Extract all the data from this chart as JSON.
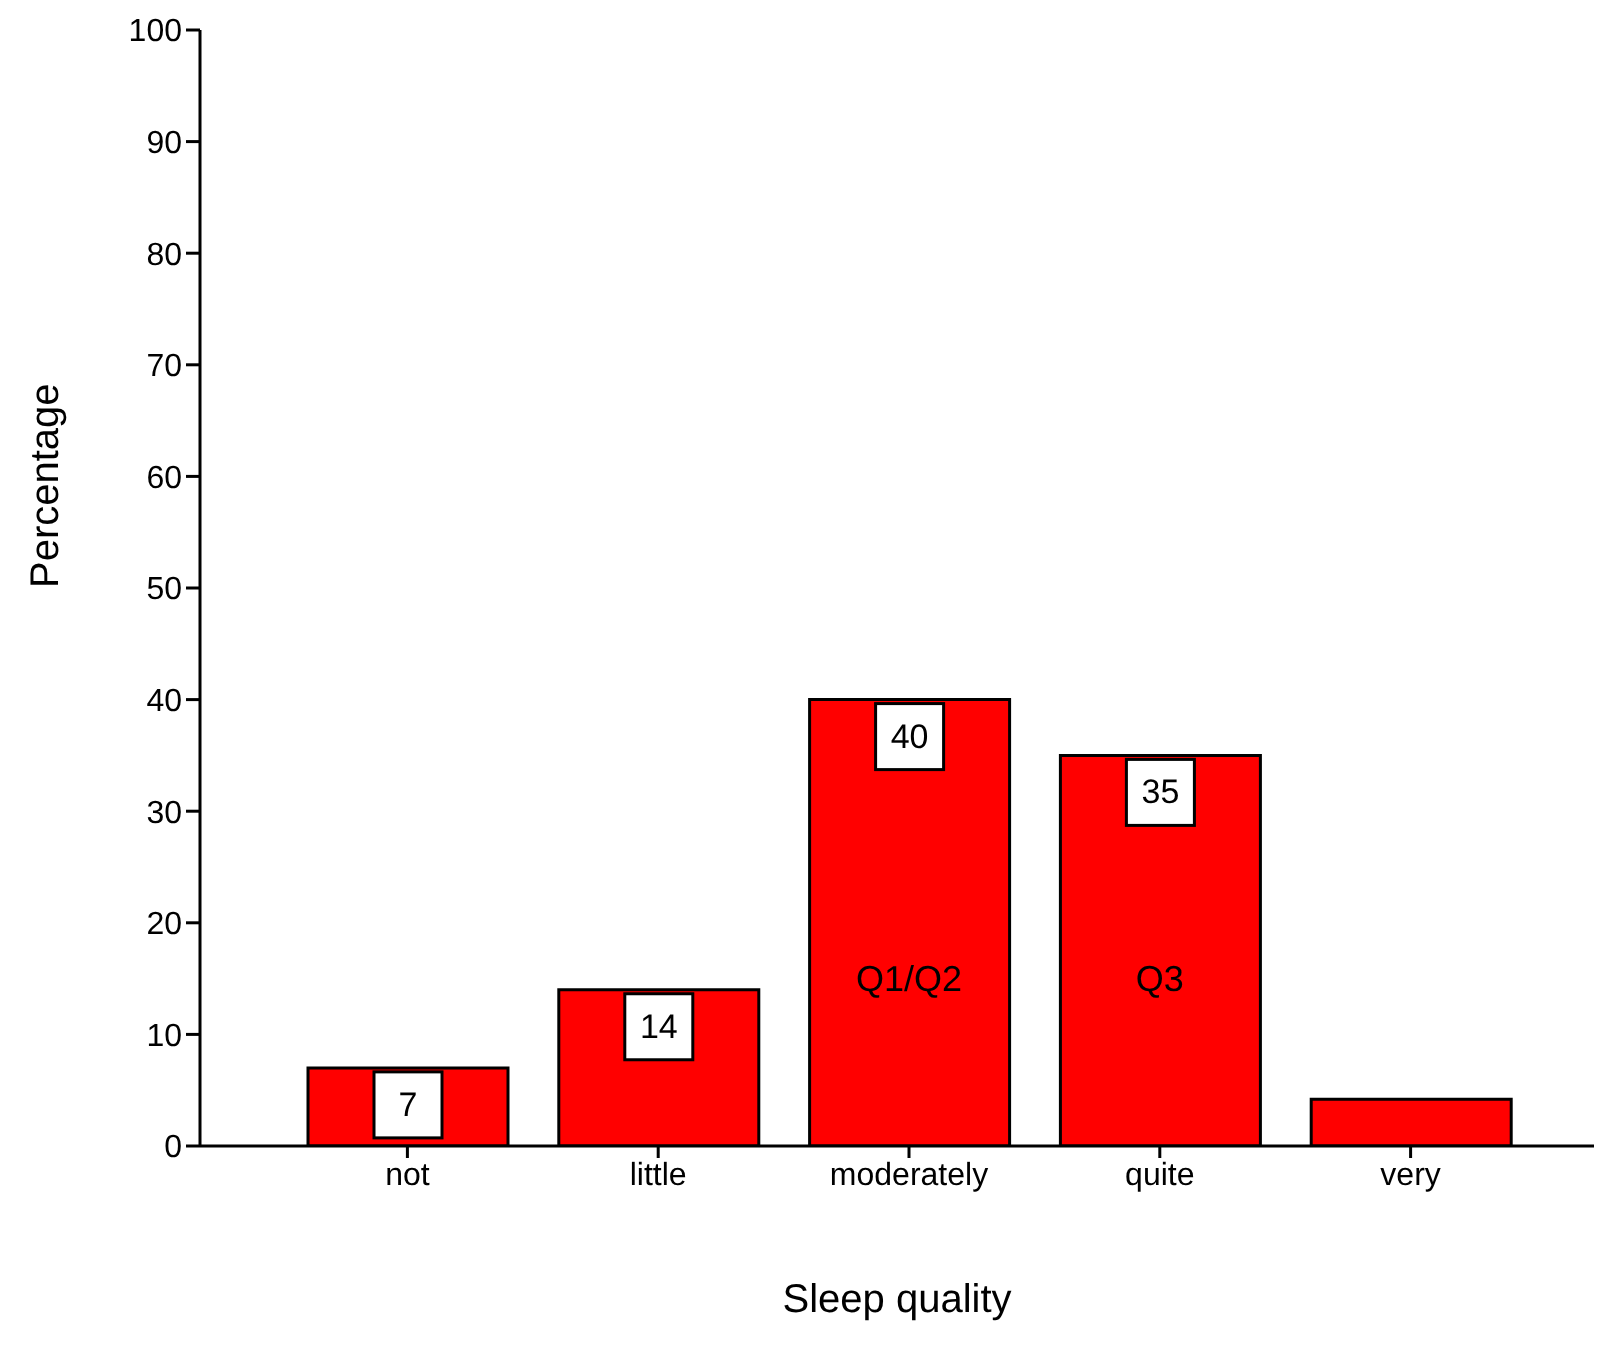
{
  "chart_data": {
    "type": "bar",
    "xlabel": "Sleep quality",
    "ylabel": "Percentage",
    "categories": [
      "not",
      "little",
      "moderately",
      "quite",
      "very"
    ],
    "values": [
      7,
      14,
      40,
      35,
      4.2
    ],
    "value_labels": [
      "7",
      "14",
      "40",
      "35",
      null
    ],
    "color": "#ff0000",
    "ylim": [
      0,
      100
    ],
    "yticks": [
      0,
      10,
      20,
      30,
      40,
      50,
      60,
      70,
      80,
      90,
      100
    ],
    "grid": false,
    "legend": false,
    "annotations": [
      "Q1/Q2",
      "Q3"
    ]
  }
}
